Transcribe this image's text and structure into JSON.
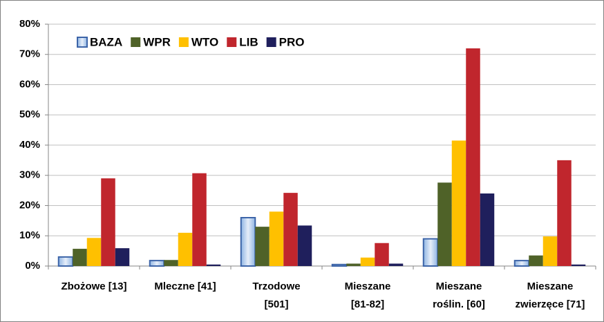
{
  "chart_data": {
    "type": "bar",
    "categories": [
      "Zbożowe [13]",
      "Mleczne [41]",
      "Trzodowe\n[501]",
      "Mieszane\n[81-82]",
      "Mieszane\nroślin. [60]",
      "Mieszane\nzwierzęce [71]"
    ],
    "series": [
      {
        "name": "BAZA",
        "color": "#c6d9f1",
        "values": [
          3,
          1.8,
          16,
          0.5,
          9,
          1.8
        ]
      },
      {
        "name": "WPR",
        "color": "#4f6228",
        "values": [
          5.7,
          2.0,
          13,
          0.8,
          27.6,
          3.5
        ]
      },
      {
        "name": "WTO",
        "color": "#ffc000",
        "values": [
          9.3,
          11,
          18,
          2.8,
          41.5,
          9.8
        ]
      },
      {
        "name": "LIB",
        "color": "#c0262d",
        "values": [
          29,
          30.7,
          24.2,
          7.6,
          72,
          35
        ]
      },
      {
        "name": "PRO",
        "color": "#1f1f5c",
        "values": [
          5.9,
          0.5,
          13.4,
          0.8,
          24,
          0.5
        ]
      }
    ],
    "ylim": [
      0,
      80
    ],
    "yticks": [
      {
        "value": 0,
        "label": "0%"
      },
      {
        "value": 10,
        "label": "10%"
      },
      {
        "value": 20,
        "label": "20%"
      },
      {
        "value": 30,
        "label": "30%"
      },
      {
        "value": 40,
        "label": "40%"
      },
      {
        "value": 50,
        "label": "50%"
      },
      {
        "value": 60,
        "label": "60%"
      },
      {
        "value": 70,
        "label": "70%"
      },
      {
        "value": 80,
        "label": "80%"
      }
    ],
    "grid": true,
    "legend": "top-left"
  }
}
